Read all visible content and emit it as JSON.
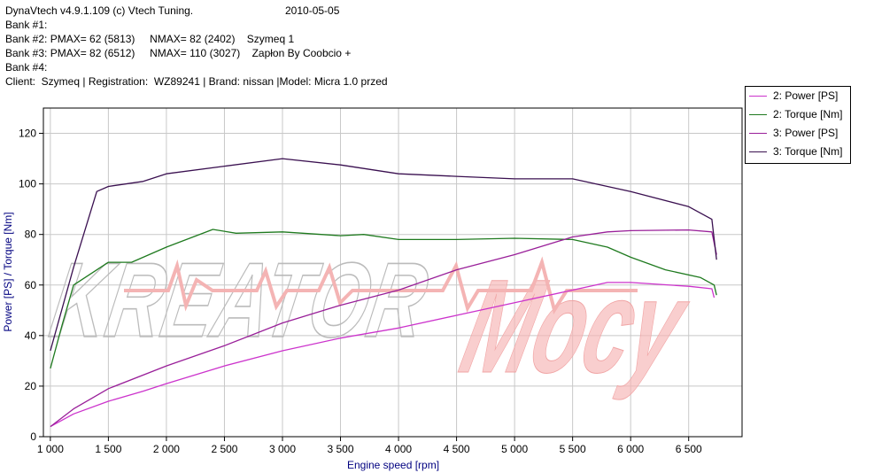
{
  "header": {
    "app_line": "DynaVtech v4.9.1.109 (c) Vtech Tuning.",
    "date": "2010-05-05",
    "bank1": "Bank #1:",
    "bank2": "Bank #2: PMAX= 62 (5813)     NMAX= 82 (2402)    Szymeq 1",
    "bank3": "Bank #3: PMAX= 82 (6512)     NMAX= 110 (3027)    Zapłon By Coobcio +",
    "bank4": "Bank #4:",
    "client": "Client:  Szymeq | Registration:  WZ89241 | Brand: nissan |Model: Micra 1.0 przed"
  },
  "watermark": {
    "line1": "KREATOR",
    "line2": "Mocy"
  },
  "chart_data": {
    "type": "line",
    "xlabel": "Engine speed [rpm]",
    "ylabel": "Power [PS] / Torque [Nm]",
    "xlim": [
      940,
      6960
    ],
    "ylim": [
      0,
      130
    ],
    "x_ticks": [
      1000,
      1500,
      2000,
      2500,
      3000,
      3500,
      4000,
      4500,
      5000,
      5500,
      6000,
      6500
    ],
    "x_tick_labels": [
      "1 000",
      "1 500",
      "2 000",
      "2 500",
      "3 000",
      "3 500",
      "4 000",
      "4 500",
      "5 000",
      "5 500",
      "6 000",
      "6 500"
    ],
    "y_ticks": [
      0,
      20,
      40,
      60,
      80,
      100,
      120
    ],
    "y_tick_labels": [
      "0",
      "20",
      "40",
      "60",
      "80",
      "100",
      "120"
    ],
    "grid": true,
    "legend_position": "top-right, outside plot",
    "series": [
      {
        "name": "2: Power [PS]",
        "color": "#cc33cc",
        "points": [
          [
            1000,
            4
          ],
          [
            1200,
            9
          ],
          [
            1500,
            14
          ],
          [
            1800,
            18
          ],
          [
            2000,
            21
          ],
          [
            2500,
            28
          ],
          [
            3000,
            34
          ],
          [
            3500,
            39
          ],
          [
            4000,
            43
          ],
          [
            4500,
            48
          ],
          [
            5000,
            53
          ],
          [
            5500,
            58
          ],
          [
            5800,
            61
          ],
          [
            6000,
            61
          ],
          [
            6500,
            59.5
          ],
          [
            6700,
            58.5
          ],
          [
            6720,
            55
          ]
        ]
      },
      {
        "name": "2: Torque [Nm]",
        "color": "#1f7a1f",
        "points": [
          [
            1000,
            27
          ],
          [
            1100,
            44
          ],
          [
            1200,
            60
          ],
          [
            1500,
            69
          ],
          [
            1700,
            69
          ],
          [
            2000,
            75
          ],
          [
            2400,
            82
          ],
          [
            2600,
            80.5
          ],
          [
            3000,
            81
          ],
          [
            3500,
            79.5
          ],
          [
            3700,
            80
          ],
          [
            4000,
            78
          ],
          [
            4500,
            78
          ],
          [
            5000,
            78.5
          ],
          [
            5500,
            78
          ],
          [
            5800,
            75
          ],
          [
            6000,
            71
          ],
          [
            6300,
            66
          ],
          [
            6600,
            63
          ],
          [
            6720,
            60
          ],
          [
            6740,
            56
          ]
        ]
      },
      {
        "name": "3: Power [PS]",
        "color": "#991f99",
        "points": [
          [
            1000,
            4
          ],
          [
            1200,
            11
          ],
          [
            1500,
            19
          ],
          [
            2000,
            28
          ],
          [
            2500,
            36
          ],
          [
            3000,
            45
          ],
          [
            3500,
            52
          ],
          [
            4000,
            58
          ],
          [
            4500,
            66
          ],
          [
            5000,
            72
          ],
          [
            5500,
            79
          ],
          [
            5800,
            81
          ],
          [
            6000,
            81.5
          ],
          [
            6500,
            81.8
          ],
          [
            6700,
            81
          ],
          [
            6740,
            72
          ]
        ]
      },
      {
        "name": "3: Torque [Nm]",
        "color": "#3a1050",
        "points": [
          [
            1000,
            34
          ],
          [
            1200,
            67
          ],
          [
            1400,
            97
          ],
          [
            1500,
            99
          ],
          [
            1800,
            101
          ],
          [
            2000,
            104
          ],
          [
            2500,
            107
          ],
          [
            3000,
            110
          ],
          [
            3500,
            107.5
          ],
          [
            4000,
            104
          ],
          [
            4500,
            103
          ],
          [
            5000,
            102
          ],
          [
            5500,
            102
          ],
          [
            6000,
            97
          ],
          [
            6500,
            91
          ],
          [
            6700,
            86
          ],
          [
            6740,
            70
          ]
        ]
      }
    ]
  }
}
